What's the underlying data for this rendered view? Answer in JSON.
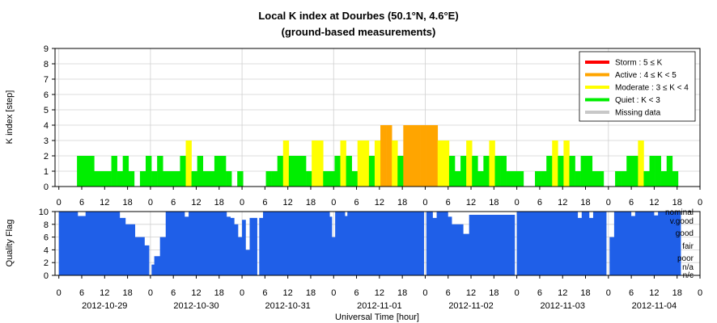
{
  "chart_data": [
    {
      "type": "bar",
      "title": "Local K index at Dourbes (50.1°N, 4.6°E)",
      "subtitle": "(ground-based measurements)",
      "ylabel": "K index [step]",
      "ylim": [
        0,
        9
      ],
      "yticks": [
        "0",
        "1",
        "2",
        "3",
        "4",
        "5",
        "6",
        "7",
        "8",
        "9"
      ],
      "grid": true,
      "legend_position": "top-right",
      "legend": [
        {
          "label": "Storm : 5 ≤ K",
          "color": "#ff0000"
        },
        {
          "label": "Active : 4 ≤ K < 5",
          "color": "#ffa500"
        },
        {
          "label": "Moderate : 3 ≤ K < 4",
          "color": "#ffff00"
        },
        {
          "label": "Quiet : K < 3",
          "color": "#00ee00"
        },
        {
          "label": "Missing data",
          "color": "#c8c8c8"
        }
      ],
      "colors": {
        "quiet": "#00ee00",
        "moderate": "#ffff00",
        "active": "#ffa500",
        "storm": "#ff0000"
      },
      "xlim_hours": [
        -1,
        168
      ],
      "bars": [
        {
          "x": 5.5,
          "k": 2
        },
        {
          "x": 7,
          "k": 2
        },
        {
          "x": 8.5,
          "k": 2
        },
        {
          "x": 10,
          "k": 1
        },
        {
          "x": 11.5,
          "k": 1
        },
        {
          "x": 13,
          "k": 1
        },
        {
          "x": 14.5,
          "k": 2
        },
        {
          "x": 16,
          "k": 1
        },
        {
          "x": 17.5,
          "k": 2
        },
        {
          "x": 19,
          "k": 1
        },
        {
          "x": 22,
          "k": 1
        },
        {
          "x": 23.5,
          "k": 2
        },
        {
          "x": 25,
          "k": 1
        },
        {
          "x": 26.5,
          "k": 2
        },
        {
          "x": 28,
          "k": 1
        },
        {
          "x": 29.5,
          "k": 1
        },
        {
          "x": 31,
          "k": 1
        },
        {
          "x": 32.5,
          "k": 2
        },
        {
          "x": 34,
          "k": 3
        },
        {
          "x": 35.5,
          "k": 1
        },
        {
          "x": 37,
          "k": 2
        },
        {
          "x": 38.5,
          "k": 1
        },
        {
          "x": 40,
          "k": 1
        },
        {
          "x": 41.5,
          "k": 2
        },
        {
          "x": 43,
          "k": 2
        },
        {
          "x": 44.5,
          "k": 1
        },
        {
          "x": 47.5,
          "k": 1
        },
        {
          "x": 55,
          "k": 1
        },
        {
          "x": 56.5,
          "k": 1
        },
        {
          "x": 58,
          "k": 2
        },
        {
          "x": 59.5,
          "k": 3
        },
        {
          "x": 61,
          "k": 2
        },
        {
          "x": 62.5,
          "k": 2
        },
        {
          "x": 64,
          "k": 2
        },
        {
          "x": 65.5,
          "k": 1
        },
        {
          "x": 67,
          "k": 3
        },
        {
          "x": 68.5,
          "k": 3
        },
        {
          "x": 70,
          "k": 1
        },
        {
          "x": 71.5,
          "k": 1
        },
        {
          "x": 73,
          "k": 2
        },
        {
          "x": 74.5,
          "k": 3
        },
        {
          "x": 76,
          "k": 2
        },
        {
          "x": 77.5,
          "k": 1
        },
        {
          "x": 79,
          "k": 3
        },
        {
          "x": 80.5,
          "k": 3
        },
        {
          "x": 82,
          "k": 2
        },
        {
          "x": 83.5,
          "k": 3
        },
        {
          "x": 85,
          "k": 4
        },
        {
          "x": 86.5,
          "k": 4
        },
        {
          "x": 88,
          "k": 3
        },
        {
          "x": 89.5,
          "k": 2
        },
        {
          "x": 91,
          "k": 4
        },
        {
          "x": 92.5,
          "k": 4
        },
        {
          "x": 94,
          "k": 4
        },
        {
          "x": 95.5,
          "k": 4
        },
        {
          "x": 97,
          "k": 4
        },
        {
          "x": 98.5,
          "k": 4
        },
        {
          "x": 100,
          "k": 3
        },
        {
          "x": 101.5,
          "k": 3
        },
        {
          "x": 103,
          "k": 2
        },
        {
          "x": 104.5,
          "k": 1
        },
        {
          "x": 106,
          "k": 2
        },
        {
          "x": 107.5,
          "k": 3
        },
        {
          "x": 109,
          "k": 2
        },
        {
          "x": 110.5,
          "k": 1
        },
        {
          "x": 112,
          "k": 2
        },
        {
          "x": 113.5,
          "k": 3
        },
        {
          "x": 115,
          "k": 2
        },
        {
          "x": 116.5,
          "k": 2
        },
        {
          "x": 118,
          "k": 1
        },
        {
          "x": 119.5,
          "k": 1
        },
        {
          "x": 121,
          "k": 1
        },
        {
          "x": 125.5,
          "k": 1
        },
        {
          "x": 127,
          "k": 1
        },
        {
          "x": 128.5,
          "k": 2
        },
        {
          "x": 130,
          "k": 3
        },
        {
          "x": 131.5,
          "k": 2
        },
        {
          "x": 133,
          "k": 3
        },
        {
          "x": 134.5,
          "k": 2
        },
        {
          "x": 136,
          "k": 1
        },
        {
          "x": 137.5,
          "k": 2
        },
        {
          "x": 139,
          "k": 2
        },
        {
          "x": 140.5,
          "k": 1
        },
        {
          "x": 142,
          "k": 1
        },
        {
          "x": 146.5,
          "k": 1
        },
        {
          "x": 148,
          "k": 1
        },
        {
          "x": 149.5,
          "k": 2
        },
        {
          "x": 151,
          "k": 2
        },
        {
          "x": 152.5,
          "k": 3
        },
        {
          "x": 154,
          "k": 1
        },
        {
          "x": 155.5,
          "k": 2
        },
        {
          "x": 157,
          "k": 2
        },
        {
          "x": 158.5,
          "k": 1
        },
        {
          "x": 160,
          "k": 2
        },
        {
          "x": 161.5,
          "k": 1
        }
      ]
    },
    {
      "type": "area",
      "ylabel": "Quality Flag",
      "ylim": [
        0,
        10
      ],
      "yticks": [
        "0",
        "2",
        "4",
        "6",
        "8",
        "10"
      ],
      "xlabel": "Universal Time [hour]",
      "color": "#1f5fe8",
      "categories": [
        "nominal",
        "v.good",
        "good",
        "fair",
        "poor",
        "n/a",
        "n/c"
      ],
      "xtick_hours": [
        "0",
        "6",
        "12",
        "18",
        "0",
        "6",
        "12",
        "18",
        "0",
        "6",
        "12",
        "18",
        "0",
        "6",
        "12",
        "18",
        "0",
        "6",
        "12",
        "18",
        "0",
        "6",
        "12",
        "18",
        "0",
        "6",
        "12",
        "18",
        "0"
      ],
      "dates": [
        "2012-10-29",
        "2012-10-30",
        "2012-10-31",
        "2012-11-01",
        "2012-11-02",
        "2012-11-03",
        "2012-11-04"
      ],
      "dips": [
        {
          "x0": 0,
          "x1": 5,
          "q": 10
        },
        {
          "x0": 5,
          "x1": 7,
          "q": 9.3
        },
        {
          "x0": 7,
          "x1": 16,
          "q": 10
        },
        {
          "x0": 16,
          "x1": 17.5,
          "q": 9
        },
        {
          "x0": 17.5,
          "x1": 20,
          "q": 8
        },
        {
          "x0": 20,
          "x1": 22.5,
          "q": 6
        },
        {
          "x0": 22.5,
          "x1": 23.7,
          "q": 4.7
        },
        {
          "x0": 23.7,
          "x1": 24.3,
          "q": 0
        },
        {
          "x0": 24.3,
          "x1": 25,
          "q": 1.7
        },
        {
          "x0": 25,
          "x1": 26.5,
          "q": 3
        },
        {
          "x0": 26.5,
          "x1": 28,
          "q": 6
        },
        {
          "x0": 28,
          "x1": 33,
          "q": 10
        },
        {
          "x0": 33,
          "x1": 34,
          "q": 9.2
        },
        {
          "x0": 34,
          "x1": 44,
          "q": 10
        },
        {
          "x0": 44,
          "x1": 45,
          "q": 9.2
        },
        {
          "x0": 45,
          "x1": 46,
          "q": 9
        },
        {
          "x0": 46,
          "x1": 47,
          "q": 8
        },
        {
          "x0": 47,
          "x1": 48,
          "q": 6
        },
        {
          "x0": 48,
          "x1": 49,
          "q": 8.7
        },
        {
          "x0": 49,
          "x1": 50,
          "q": 4
        },
        {
          "x0": 50,
          "x1": 52,
          "q": 9
        },
        {
          "x0": 52,
          "x1": 52.5,
          "q": 0
        },
        {
          "x0": 52.5,
          "x1": 53.5,
          "q": 9
        },
        {
          "x0": 53.5,
          "x1": 71,
          "q": 10
        },
        {
          "x0": 71,
          "x1": 71.6,
          "q": 9.2
        },
        {
          "x0": 71.6,
          "x1": 72.4,
          "q": 6
        },
        {
          "x0": 72.4,
          "x1": 75,
          "q": 10
        },
        {
          "x0": 75,
          "x1": 75.6,
          "q": 9.3
        },
        {
          "x0": 75.6,
          "x1": 95.7,
          "q": 10
        },
        {
          "x0": 95.7,
          "x1": 96.3,
          "q": 0
        },
        {
          "x0": 96.3,
          "x1": 98,
          "q": 10
        },
        {
          "x0": 98,
          "x1": 99,
          "q": 9
        },
        {
          "x0": 99,
          "x1": 102,
          "q": 10
        },
        {
          "x0": 102,
          "x1": 103,
          "q": 9.2
        },
        {
          "x0": 103,
          "x1": 106,
          "q": 8
        },
        {
          "x0": 106,
          "x1": 107.5,
          "q": 6.5
        },
        {
          "x0": 107.5,
          "x1": 119.5,
          "q": 9.5
        },
        {
          "x0": 119.5,
          "x1": 120,
          "q": 0
        },
        {
          "x0": 120,
          "x1": 136,
          "q": 10
        },
        {
          "x0": 136,
          "x1": 137,
          "q": 9
        },
        {
          "x0": 137,
          "x1": 139,
          "q": 10
        },
        {
          "x0": 139,
          "x1": 140,
          "q": 9
        },
        {
          "x0": 140,
          "x1": 143.5,
          "q": 10
        },
        {
          "x0": 143.5,
          "x1": 144.3,
          "q": 0
        },
        {
          "x0": 144.3,
          "x1": 145.5,
          "q": 6
        },
        {
          "x0": 145.5,
          "x1": 150,
          "q": 10
        },
        {
          "x0": 150,
          "x1": 151,
          "q": 9.3
        },
        {
          "x0": 151,
          "x1": 156,
          "q": 10
        },
        {
          "x0": 156,
          "x1": 157,
          "q": 9.4
        },
        {
          "x0": 157,
          "x1": 163,
          "q": 10
        }
      ]
    }
  ]
}
